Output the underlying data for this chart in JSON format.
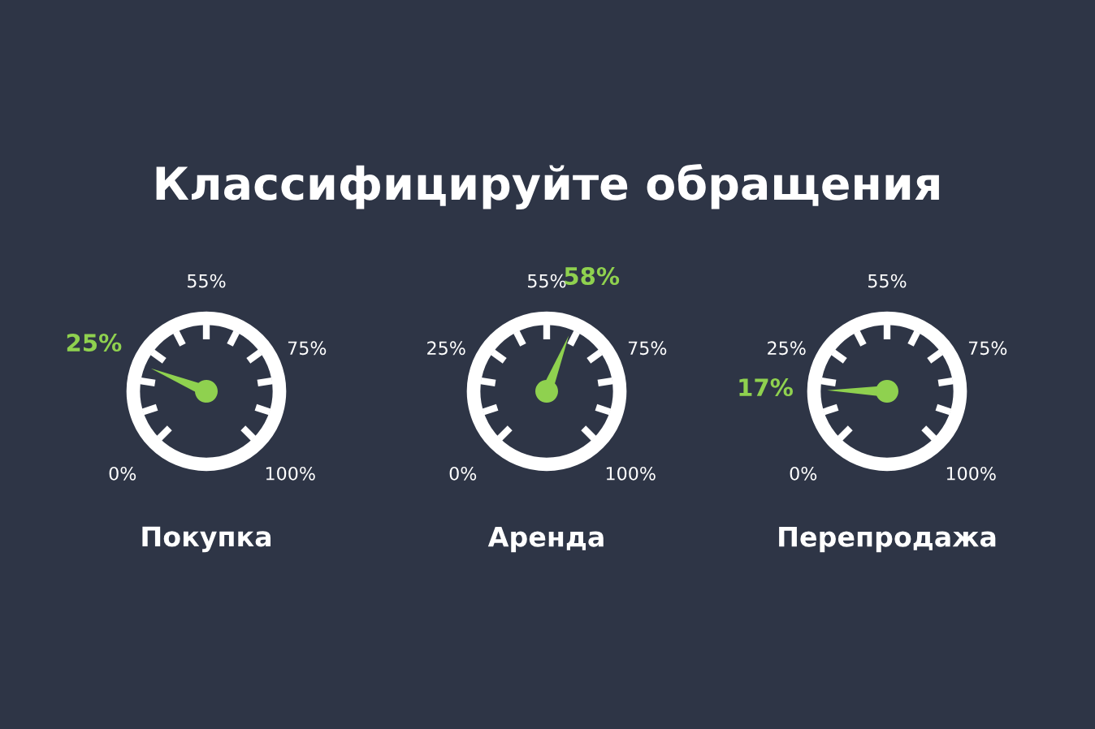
{
  "chart_data": {
    "type": "other",
    "title": "Классифицируйте обращения",
    "categories": [
      "Покупка",
      "Аренда",
      "Перепродажа"
    ],
    "values": [
      25,
      58,
      17
    ],
    "value_labels": [
      "25%",
      "58%",
      "17%"
    ],
    "annotations": [
      "0%",
      "25%",
      "55%",
      "75%",
      "100%"
    ],
    "color": "#8fd14f"
  }
}
